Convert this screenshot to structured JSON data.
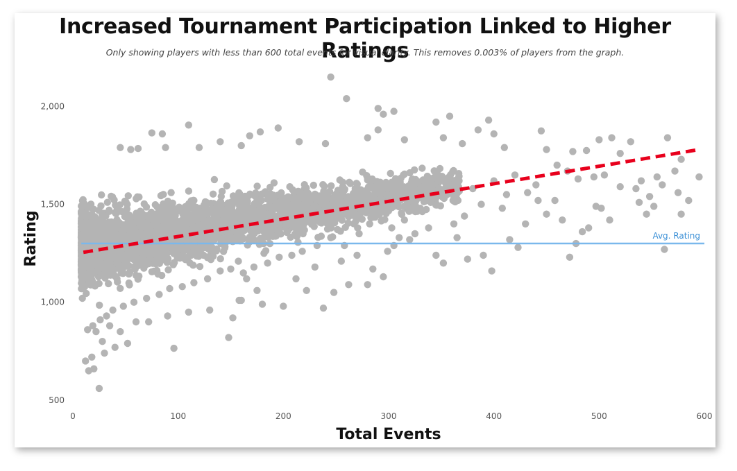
{
  "chart_data": {
    "type": "scatter",
    "title": "Increased Tournament Participation Linked to Higher Ratings",
    "subtitle": "Only showing players with less than 600 total events for visual clarity. This removes 0.003% of players from the graph.",
    "xlabel": "Total Events",
    "ylabel": "Rating",
    "xlim": [
      0,
      600
    ],
    "ylim": [
      450,
      2200
    ],
    "x_ticks": [
      0,
      100,
      200,
      300,
      400,
      500,
      600
    ],
    "x_tick_labels": [
      "0",
      "100",
      "200",
      "300",
      "400",
      "500",
      "600"
    ],
    "y_ticks": [
      500,
      1000,
      1500,
      2000
    ],
    "y_tick_labels": [
      "500",
      "1,000",
      "1,500",
      "2,000"
    ],
    "grid": false,
    "point_color": "#b4b4b4",
    "trend_color": "#e8001c",
    "avg_color": "#7ab8ec",
    "avg_rating": {
      "value": 1300,
      "label": "Avg. Rating"
    },
    "trendline": {
      "x": [
        10,
        595
      ],
      "y": [
        1255,
        1780
      ]
    },
    "points": [
      [
        245,
        2150
      ],
      [
        260,
        2040
      ],
      [
        290,
        1990
      ],
      [
        305,
        1975
      ],
      [
        295,
        1960
      ],
      [
        358,
        1950
      ],
      [
        395,
        1930
      ],
      [
        345,
        1920
      ],
      [
        110,
        1905
      ],
      [
        195,
        1890
      ],
      [
        75,
        1865
      ],
      [
        85,
        1860
      ],
      [
        290,
        1880
      ],
      [
        385,
        1880
      ],
      [
        400,
        1860
      ],
      [
        445,
        1875
      ],
      [
        512,
        1840
      ],
      [
        565,
        1840
      ],
      [
        530,
        1820
      ],
      [
        500,
        1830
      ],
      [
        178,
        1870
      ],
      [
        168,
        1850
      ],
      [
        140,
        1820
      ],
      [
        45,
        1790
      ],
      [
        62,
        1785
      ],
      [
        55,
        1780
      ],
      [
        88,
        1790
      ],
      [
        120,
        1790
      ],
      [
        160,
        1800
      ],
      [
        215,
        1820
      ],
      [
        240,
        1810
      ],
      [
        280,
        1840
      ],
      [
        315,
        1830
      ],
      [
        352,
        1840
      ],
      [
        370,
        1810
      ],
      [
        410,
        1790
      ],
      [
        450,
        1780
      ],
      [
        475,
        1770
      ],
      [
        488,
        1775
      ],
      [
        520,
        1760
      ],
      [
        595,
        1640
      ],
      [
        572,
        1670
      ],
      [
        578,
        1730
      ],
      [
        560,
        1600
      ],
      [
        548,
        1540
      ],
      [
        552,
        1490
      ],
      [
        575,
        1560
      ],
      [
        585,
        1520
      ],
      [
        538,
        1510
      ],
      [
        545,
        1450
      ],
      [
        578,
        1450
      ],
      [
        562,
        1270
      ],
      [
        510,
        1420
      ],
      [
        502,
        1480
      ],
      [
        497,
        1490
      ],
      [
        490,
        1380
      ],
      [
        484,
        1360
      ],
      [
        465,
        1420
      ],
      [
        478,
        1300
      ],
      [
        472,
        1230
      ],
      [
        450,
        1450
      ],
      [
        430,
        1400
      ],
      [
        423,
        1280
      ],
      [
        415,
        1320
      ],
      [
        398,
        1160
      ],
      [
        390,
        1240
      ],
      [
        375,
        1220
      ],
      [
        365,
        1330
      ],
      [
        352,
        1200
      ],
      [
        345,
        1240
      ],
      [
        320,
        1320
      ],
      [
        305,
        1290
      ],
      [
        299,
        1260
      ],
      [
        295,
        1130
      ],
      [
        285,
        1170
      ],
      [
        280,
        1090
      ],
      [
        262,
        1090
      ],
      [
        248,
        1050
      ],
      [
        238,
        970
      ],
      [
        222,
        1060
      ],
      [
        200,
        980
      ],
      [
        180,
        990
      ],
      [
        175,
        1060
      ],
      [
        160,
        1010
      ],
      [
        152,
        920
      ],
      [
        148,
        820
      ],
      [
        96,
        765
      ],
      [
        45,
        850
      ],
      [
        52,
        790
      ],
      [
        40,
        770
      ],
      [
        25,
        560
      ],
      [
        20,
        660
      ],
      [
        15,
        650
      ],
      [
        12,
        700
      ],
      [
        18,
        720
      ],
      [
        30,
        740
      ],
      [
        28,
        800
      ],
      [
        22,
        850
      ],
      [
        35,
        880
      ],
      [
        60,
        900
      ],
      [
        72,
        900
      ],
      [
        90,
        930
      ],
      [
        110,
        950
      ],
      [
        130,
        960
      ],
      [
        165,
        1120
      ],
      [
        158,
        1010
      ],
      [
        212,
        1120
      ],
      [
        230,
        1180
      ],
      [
        255,
        1210
      ],
      [
        270,
        1240
      ],
      [
        315,
        1420
      ],
      [
        330,
        1480
      ],
      [
        340,
        1510
      ],
      [
        360,
        1560
      ],
      [
        380,
        1580
      ],
      [
        400,
        1620
      ],
      [
        420,
        1650
      ],
      [
        440,
        1600
      ],
      [
        460,
        1700
      ],
      [
        470,
        1670
      ],
      [
        480,
        1630
      ],
      [
        495,
        1640
      ],
      [
        505,
        1650
      ],
      [
        520,
        1590
      ],
      [
        535,
        1580
      ],
      [
        540,
        1620
      ],
      [
        555,
        1640
      ],
      [
        442,
        1520
      ],
      [
        458,
        1520
      ],
      [
        412,
        1550
      ],
      [
        432,
        1560
      ],
      [
        408,
        1480
      ],
      [
        388,
        1500
      ],
      [
        372,
        1440
      ],
      [
        362,
        1400
      ],
      [
        338,
        1380
      ],
      [
        325,
        1350
      ],
      [
        310,
        1330
      ],
      [
        303,
        1380
      ],
      [
        282,
        1400
      ],
      [
        272,
        1350
      ],
      [
        258,
        1290
      ],
      [
        245,
        1330
      ],
      [
        232,
        1290
      ],
      [
        218,
        1260
      ],
      [
        208,
        1240
      ],
      [
        196,
        1230
      ],
      [
        185,
        1200
      ],
      [
        172,
        1180
      ],
      [
        162,
        1150
      ],
      [
        150,
        1170
      ],
      [
        140,
        1160
      ],
      [
        128,
        1120
      ],
      [
        115,
        1100
      ],
      [
        104,
        1080
      ],
      [
        92,
        1070
      ],
      [
        82,
        1040
      ],
      [
        70,
        1020
      ],
      [
        58,
        1000
      ],
      [
        48,
        980
      ],
      [
        38,
        960
      ],
      [
        32,
        930
      ],
      [
        26,
        910
      ],
      [
        19,
        880
      ],
      [
        14,
        860
      ]
    ]
  }
}
